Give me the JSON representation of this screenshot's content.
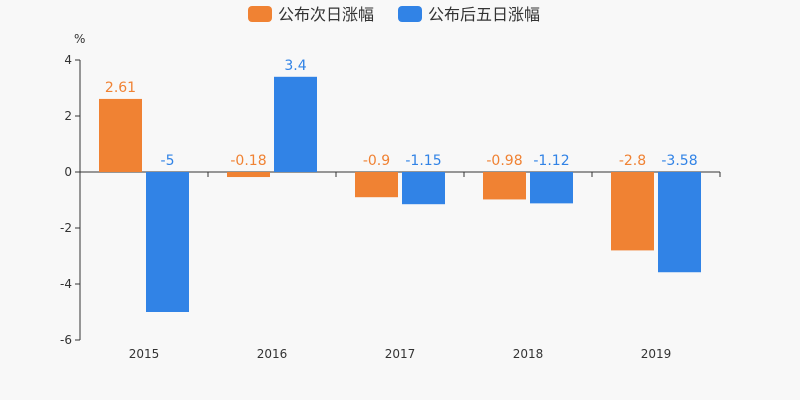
{
  "chart_data": {
    "type": "bar",
    "categories": [
      "2015",
      "2016",
      "2017",
      "2018",
      "2019"
    ],
    "series": [
      {
        "name": "公布次日涨幅",
        "color": "#f08233",
        "values": [
          2.61,
          -0.18,
          -0.9,
          -0.98,
          -2.8
        ],
        "labels": [
          "2.61",
          "-0.18",
          "-0.9",
          "-0.98",
          "-2.8"
        ]
      },
      {
        "name": "公布后五日涨幅",
        "color": "#3183e6",
        "values": [
          -5,
          3.4,
          -1.15,
          -1.12,
          -3.58
        ],
        "labels": [
          "-5",
          "3.4",
          "-1.15",
          "-1.12",
          "-3.58"
        ]
      }
    ],
    "ylabel": "%",
    "ylim": [
      -6,
      4
    ],
    "yticks": [
      4,
      2,
      0,
      -2,
      -4,
      -6
    ],
    "ytick_labels": [
      "4",
      "2",
      "0",
      "-2",
      "-4",
      "-6"
    ],
    "grid": false,
    "legend_position": "top-center"
  }
}
